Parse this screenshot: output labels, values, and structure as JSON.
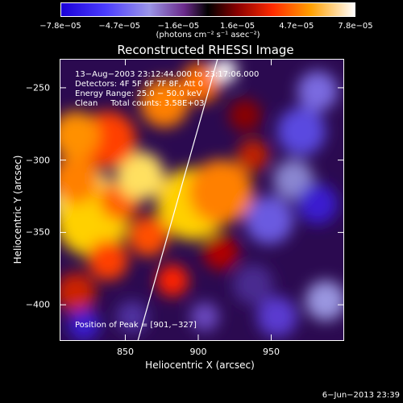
{
  "colorbar": {
    "ticks": [
      "−7.8e−05",
      "−4.7e−05",
      "−1.6e−05",
      "1.6e−05",
      "4.7e−05",
      "7.8e−05"
    ],
    "units": "(photons cm⁻² s⁻¹ asec⁻²)",
    "range": [
      -7.8e-05,
      7.8e-05
    ]
  },
  "chart_data": {
    "type": "heatmap",
    "title": "Reconstructed RHESSI Image",
    "xlabel": "Heliocentric X (arcsec)",
    "ylabel": "Heliocentric Y (arcsec)",
    "xlim": [
      805,
      1000
    ],
    "ylim": [
      -425,
      -230
    ],
    "xticks": [
      "850",
      "900",
      "950"
    ],
    "yticks": [
      "−250",
      "−300",
      "−350",
      "−400"
    ],
    "peak": [
      901,
      -327
    ],
    "annotations": {
      "time": "13−Aug−2003 23:12:44.000 to 23:17:06.000",
      "detectors": "Detectors: 4F 5F 6F 7F 8F, Att 0",
      "energy": "Energy Range: 25.0 − 50.0 keV",
      "clean": "Clean     Total counts: 3.58E+03",
      "peak_label": "Position of Peak = [901,−327]"
    }
  },
  "datestamp": "6−Jun−2013 23:39"
}
